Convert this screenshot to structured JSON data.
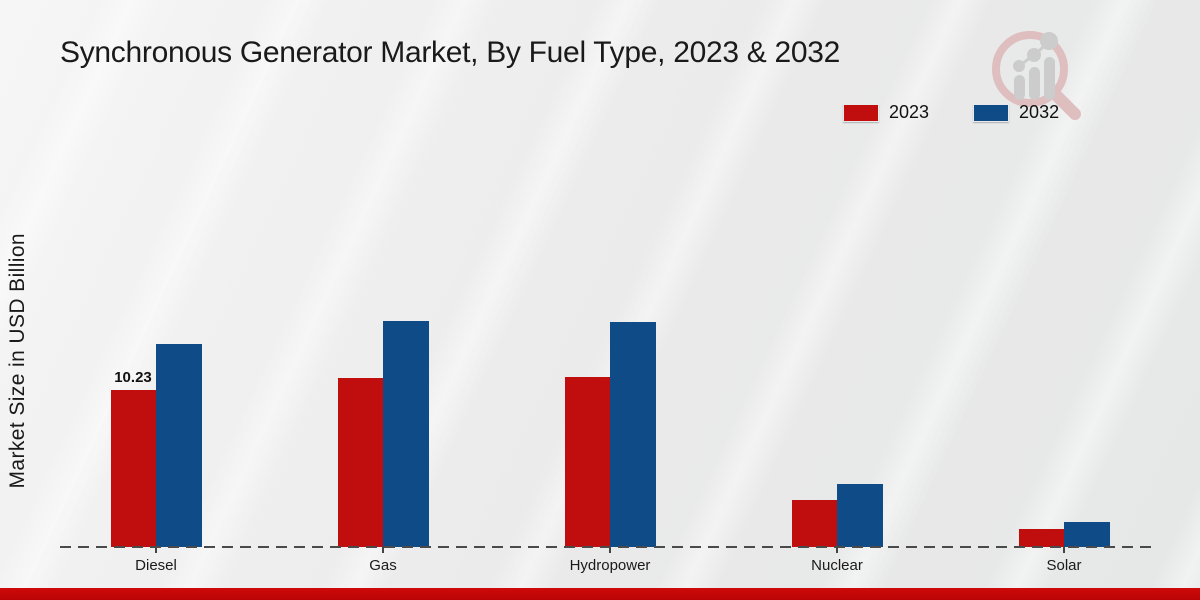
{
  "chart_data": {
    "type": "bar",
    "title": "Synchronous Generator Market, By Fuel Type, 2023 & 2032",
    "ylabel": "Market Size in USD Billion",
    "xlabel": "",
    "categories": [
      "Diesel",
      "Gas",
      "Hydropower",
      "Nuclear",
      "Solar"
    ],
    "series": [
      {
        "name": "2023",
        "color": "#c00d0d",
        "values": [
          10.23,
          11.0,
          11.05,
          3.05,
          1.2
        ]
      },
      {
        "name": "2032",
        "color": "#0f4c87",
        "values": [
          13.25,
          14.7,
          14.65,
          4.1,
          1.6
        ]
      }
    ],
    "annotation": {
      "text": "10.23",
      "series": "2023",
      "category": "Diesel"
    },
    "legend_position": "top-right",
    "grid": false,
    "baseline_style": "dashed",
    "units": "USD Billion"
  },
  "watermark": {
    "name": "market-research-magnifier-logo"
  },
  "colors": {
    "series_2023": "#c00d0d",
    "series_2032": "#0f4c87",
    "bottom_band": "#c40808",
    "baseline": "#4a4a4a",
    "background": "#e9eaea"
  }
}
